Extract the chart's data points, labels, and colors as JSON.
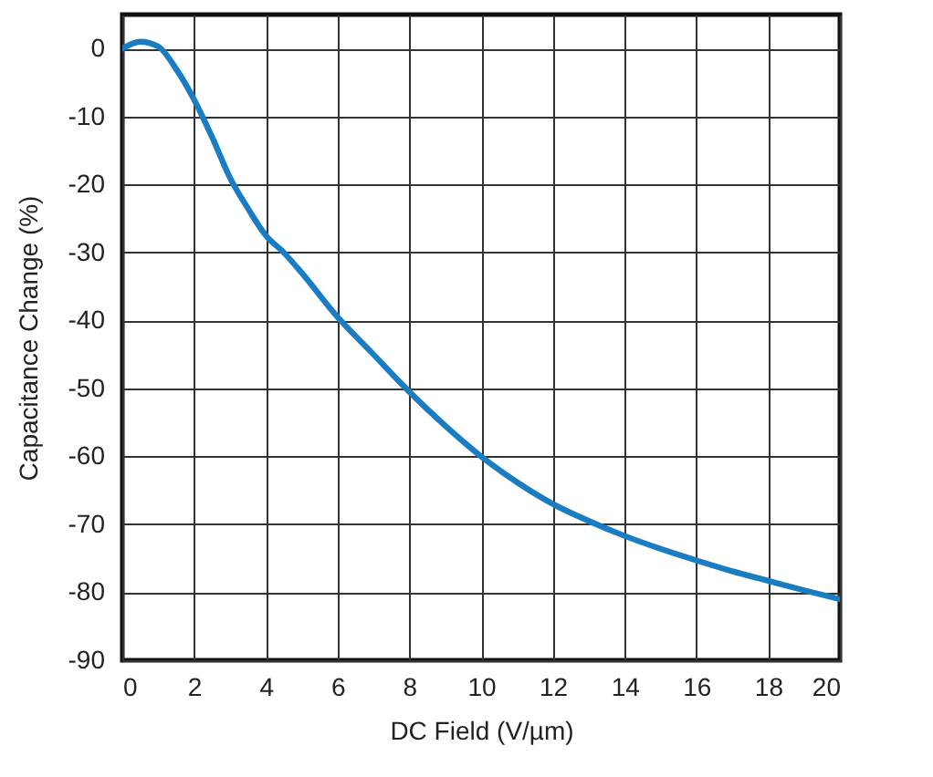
{
  "chart_data": {
    "type": "line",
    "xlabel": "DC Field (V/µm)",
    "ylabel": "Capacitance Change (%)",
    "x": [
      0,
      0.5,
      1,
      1.5,
      2,
      2.5,
      3,
      3.5,
      4,
      4.5,
      5,
      6,
      7,
      8,
      9,
      10,
      11,
      12,
      13,
      14,
      15,
      16,
      17,
      18,
      19,
      20
    ],
    "series": [
      {
        "color": "#1a7dc4",
        "values": [
          0,
          1,
          0.3,
          -3,
          -7.5,
          -13,
          -19,
          -23.5,
          -27.5,
          -30,
          -33,
          -39.5,
          -45,
          -50.5,
          -55.5,
          -60,
          -63.8,
          -67,
          -69.5,
          -71.7,
          -73.6,
          -75.3,
          -76.9,
          -78.3,
          -79.7,
          -81
        ]
      }
    ],
    "xlim": [
      0,
      20
    ],
    "xticks": [
      0,
      2,
      4,
      6,
      8,
      10,
      12,
      14,
      16,
      18,
      20
    ],
    "ylim": [
      -90,
      5
    ],
    "yticks": [
      0,
      -10,
      -20,
      -30,
      -40,
      -50,
      -60,
      -70,
      -80,
      -90
    ],
    "grid": true,
    "marker": "none",
    "line_style": "solid"
  }
}
